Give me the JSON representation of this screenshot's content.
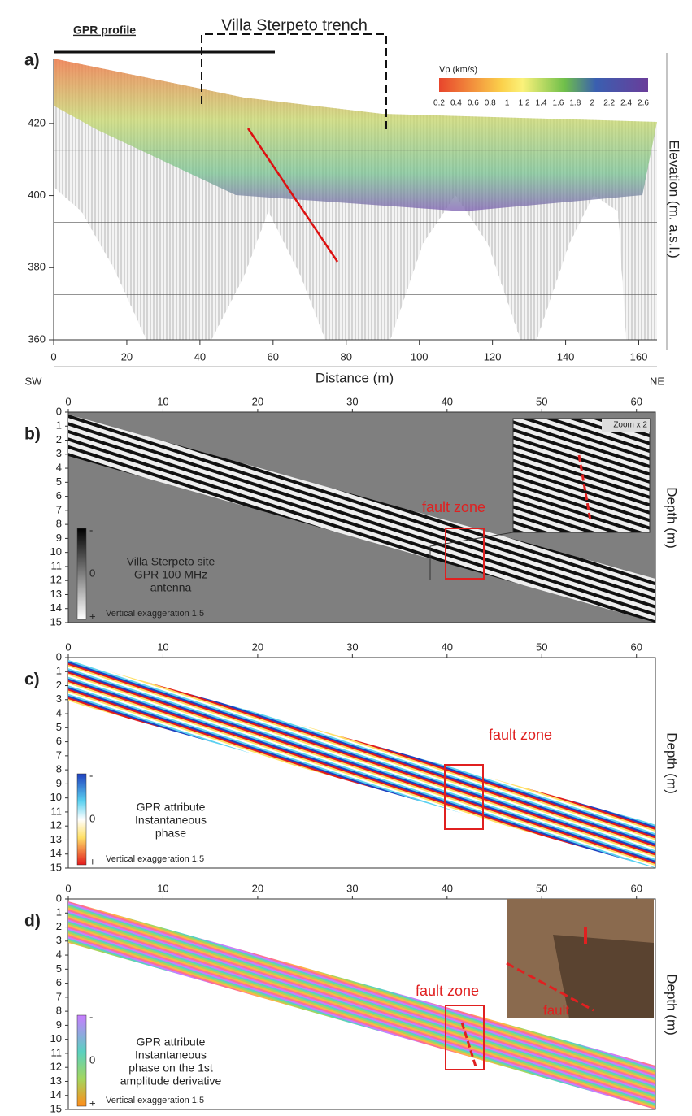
{
  "panel_a": {
    "label": "a)",
    "gpr_profile": "GPR profile",
    "trench": "Villa Sterpeto trench",
    "colorbar_title": "Vp (km/s)",
    "colorbar_ticks": [
      0.2,
      0.4,
      0.6,
      0.8,
      1,
      1.2,
      1.4,
      1.6,
      1.8,
      2,
      2.2,
      2.4,
      2.6
    ],
    "xlabel": "Distance (m)",
    "ylabel": "Elevation (m. a.s.l.)",
    "xlim": [
      0,
      165
    ],
    "xticks": [
      0,
      20,
      40,
      60,
      80,
      100,
      120,
      140,
      160
    ],
    "ylim": [
      360,
      438
    ],
    "yticks": [
      360,
      380,
      400,
      420
    ],
    "left_end": "SW",
    "right_end": "NE"
  },
  "gpr_panels": [
    {
      "label": "b)",
      "xlim": [
        0,
        62
      ],
      "xticks": [
        0,
        10,
        20,
        30,
        40,
        50,
        60
      ],
      "ylim": [
        0,
        15
      ],
      "yticks": [
        0,
        1,
        2,
        3,
        4,
        5,
        6,
        7,
        8,
        9,
        10,
        11,
        12,
        13,
        14,
        15
      ],
      "ylabel": "Depth (m)",
      "fault_label": "fault zone",
      "legend_lines": [
        "Villa Sterpeto site",
        "GPR 100 MHz",
        "antenna"
      ],
      "scale_labels": [
        "-",
        "0",
        "+"
      ],
      "exaggeration": "Vertical exaggeration 1.5",
      "zoom": "Zoom x 2"
    },
    {
      "label": "c)",
      "xlim": [
        0,
        62
      ],
      "xticks": [
        0,
        10,
        20,
        30,
        40,
        50,
        60
      ],
      "ylim": [
        0,
        15
      ],
      "yticks": [
        0,
        1,
        2,
        3,
        4,
        5,
        6,
        7,
        8,
        9,
        10,
        11,
        12,
        13,
        14,
        15
      ],
      "ylabel": "Depth (m)",
      "fault_label": "fault zone",
      "legend_lines": [
        "GPR attribute",
        "Instantaneous",
        "phase"
      ],
      "scale_labels": [
        "-",
        "0",
        "+"
      ],
      "exaggeration": "Vertical exaggeration 1.5"
    },
    {
      "label": "d)",
      "xlim": [
        0,
        62
      ],
      "xticks": [
        0,
        10,
        20,
        30,
        40,
        50,
        60
      ],
      "ylim": [
        0,
        15
      ],
      "yticks": [
        0,
        1,
        2,
        3,
        4,
        5,
        6,
        7,
        8,
        9,
        10,
        11,
        12,
        13,
        14,
        15
      ],
      "ylabel": "Depth (m)",
      "fault_label": "fault zone",
      "legend_lines": [
        "GPR attribute",
        "Instantaneous",
        "phase on the 1st",
        "amplitude derivative"
      ],
      "scale_labels": [
        "-",
        "0",
        "+"
      ],
      "exaggeration": "Vertical exaggeration 1.5",
      "photo_label": "fault"
    }
  ]
}
